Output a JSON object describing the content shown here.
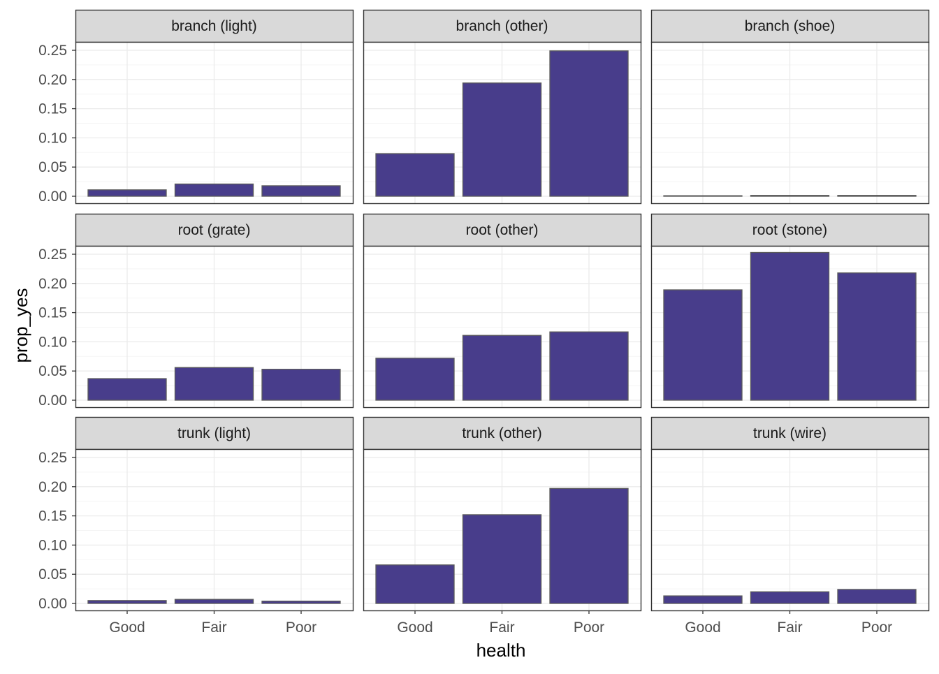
{
  "chart_data": {
    "type": "bar",
    "xlabel": "health",
    "ylabel": "prop_yes",
    "categories": [
      "Good",
      "Fair",
      "Poor"
    ],
    "ylim": [
      0,
      0.25
    ],
    "yticks": [
      "0.00",
      "0.05",
      "0.10",
      "0.15",
      "0.20",
      "0.25"
    ],
    "grid": true,
    "legend": "none",
    "facets": [
      {
        "label": "branch (light)",
        "values": [
          0.011,
          0.021,
          0.018
        ]
      },
      {
        "label": "branch (other)",
        "values": [
          0.073,
          0.194,
          0.249
        ]
      },
      {
        "label": "branch (shoe)",
        "values": [
          0.0008,
          0.0015,
          0.0015
        ]
      },
      {
        "label": "root (grate)",
        "values": [
          0.037,
          0.056,
          0.053
        ]
      },
      {
        "label": "root (other)",
        "values": [
          0.072,
          0.111,
          0.117
        ]
      },
      {
        "label": "root (stone)",
        "values": [
          0.189,
          0.253,
          0.218
        ]
      },
      {
        "label": "trunk (light)",
        "values": [
          0.005,
          0.007,
          0.004
        ]
      },
      {
        "label": "trunk (other)",
        "values": [
          0.066,
          0.152,
          0.197
        ]
      },
      {
        "label": "trunk (wire)",
        "values": [
          0.013,
          0.02,
          0.024
        ]
      }
    ]
  },
  "colors": {
    "bar_fill": "#483D8B",
    "bar_stroke": "#5a5a5a",
    "strip_fill": "#d9d9d9",
    "grid_major": "#ebebeb",
    "grid_minor": "#f5f5f5",
    "panel_border": "#333333"
  }
}
